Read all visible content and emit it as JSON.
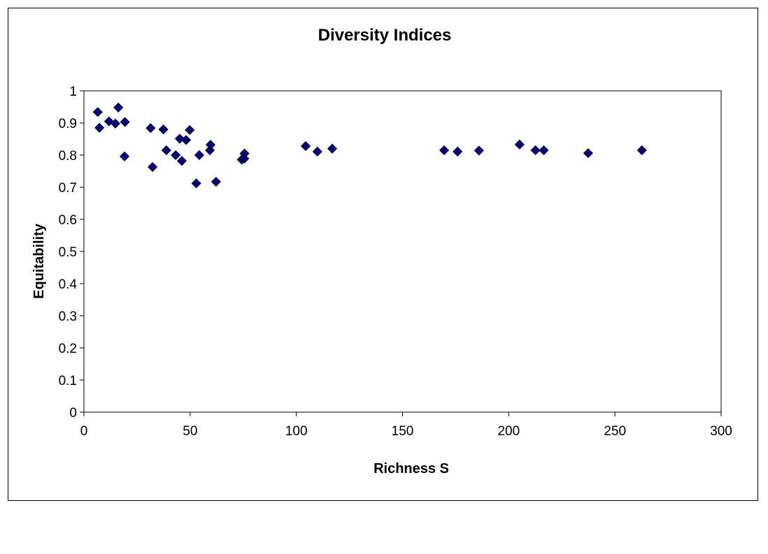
{
  "chart_data": {
    "type": "scatter",
    "title": "Diversity Indices",
    "xlabel": "Richness S",
    "ylabel": "Equitability",
    "xlim": [
      0,
      300
    ],
    "ylim": [
      0,
      1
    ],
    "x_ticks": [
      "0",
      "50",
      "100",
      "150",
      "200",
      "250",
      "300"
    ],
    "y_ticks": [
      "0",
      "0.1",
      "0.2",
      "0.3",
      "0.4",
      "0.5",
      "0.6",
      "0.7",
      "0.8",
      "0.9",
      "1"
    ],
    "x_tick_values": [
      0,
      50,
      100,
      150,
      200,
      250,
      300
    ],
    "y_tick_values": [
      0,
      0.1,
      0.2,
      0.3,
      0.4,
      0.5,
      0.6,
      0.7,
      0.8,
      0.9,
      1
    ],
    "grid": false,
    "legend": "none",
    "marker": "diamond",
    "marker_color": "#000080",
    "series": [
      {
        "points": [
          [
            6.5,
            0.934
          ],
          [
            7.3,
            0.885
          ],
          [
            11.8,
            0.905
          ],
          [
            14.8,
            0.898
          ],
          [
            16.2,
            0.948
          ],
          [
            19.3,
            0.903
          ],
          [
            19.1,
            0.796
          ],
          [
            31.4,
            0.884
          ],
          [
            32.3,
            0.763
          ],
          [
            37.4,
            0.88
          ],
          [
            38.8,
            0.815
          ],
          [
            43.2,
            0.8
          ],
          [
            45.1,
            0.851
          ],
          [
            46.1,
            0.782
          ],
          [
            48.1,
            0.847
          ],
          [
            49.8,
            0.878
          ],
          [
            52.9,
            0.712
          ],
          [
            54.3,
            0.8
          ],
          [
            59.3,
            0.815
          ],
          [
            59.6,
            0.832
          ],
          [
            62.2,
            0.717
          ],
          [
            74.3,
            0.786
          ],
          [
            75.5,
            0.789
          ],
          [
            75.6,
            0.805
          ],
          [
            104.4,
            0.828
          ],
          [
            109.9,
            0.811
          ],
          [
            116.9,
            0.82
          ],
          [
            169.6,
            0.815
          ],
          [
            175.9,
            0.811
          ],
          [
            186.0,
            0.814
          ],
          [
            205.1,
            0.833
          ],
          [
            212.6,
            0.815
          ],
          [
            216.5,
            0.815
          ],
          [
            237.4,
            0.806
          ],
          [
            262.7,
            0.815
          ]
        ]
      }
    ]
  }
}
